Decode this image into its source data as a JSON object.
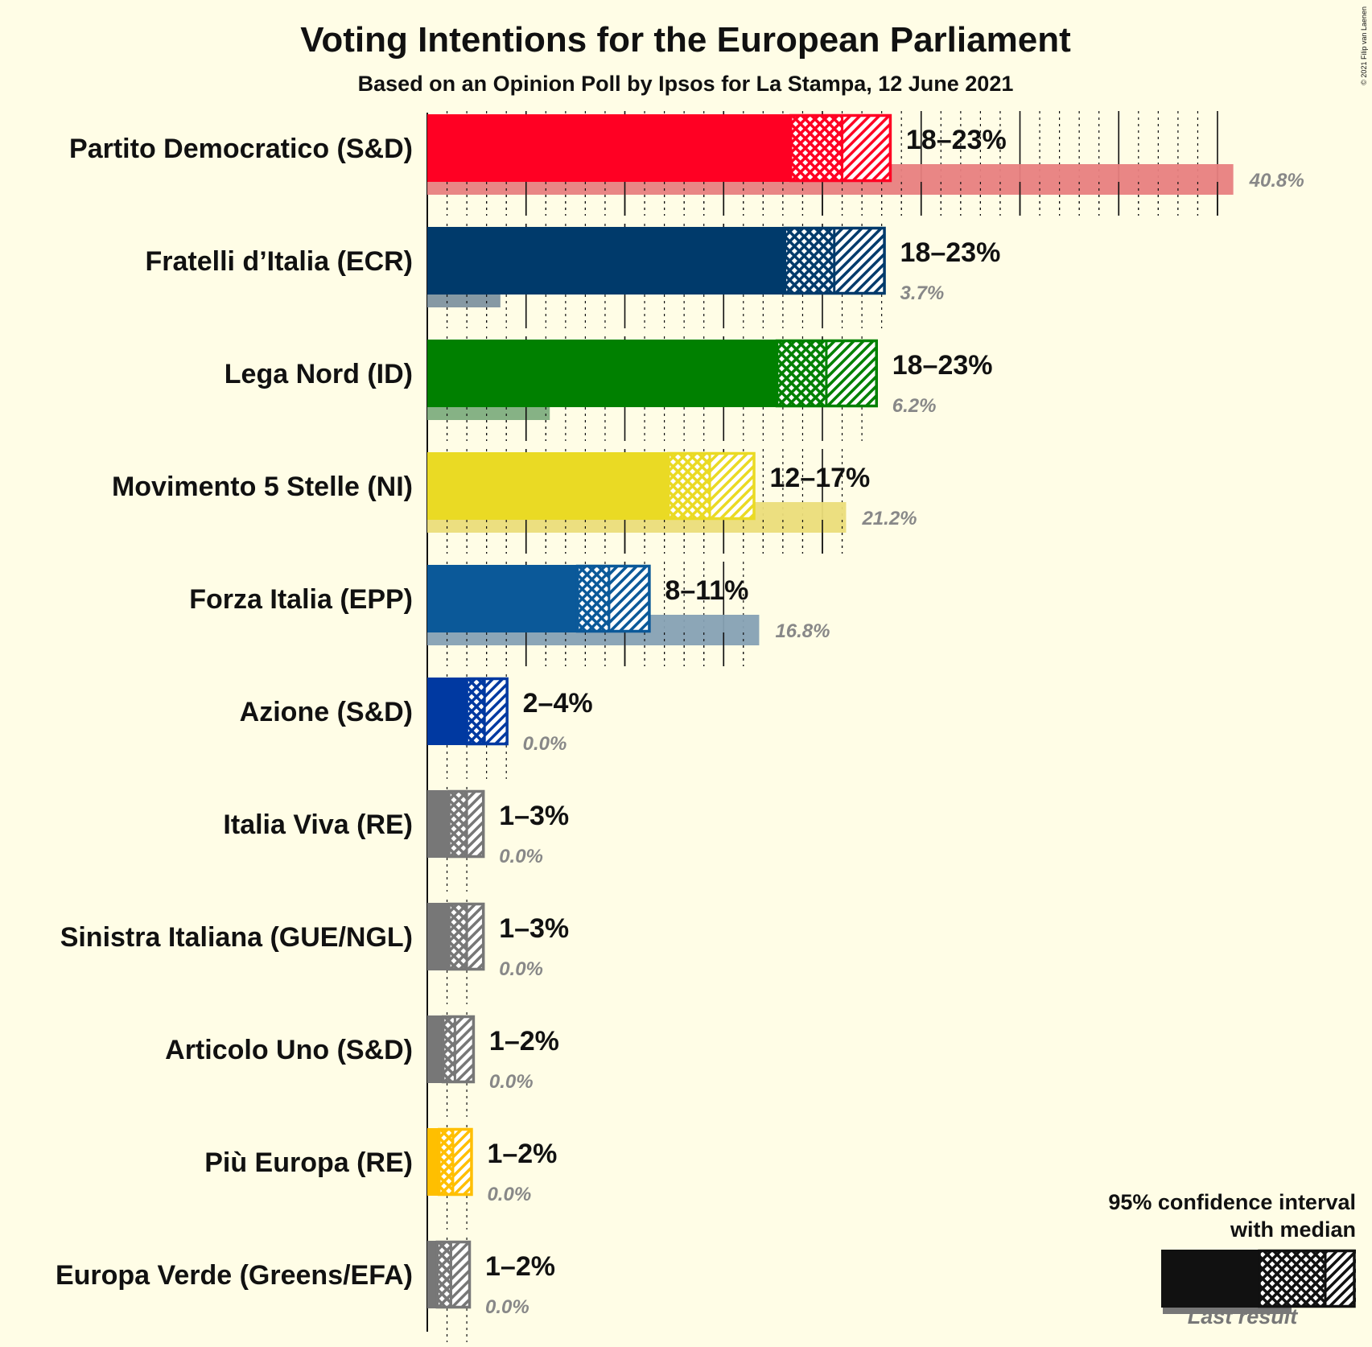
{
  "chart_data": {
    "type": "bar",
    "title": "Voting Intentions for the European Parliament",
    "subtitle": "Based on an Opinion Poll by Ipsos for La Stampa, 12 June 2021",
    "copyright": "© 2021 Filip van Laenen",
    "xlim": [
      0,
      42
    ],
    "series": [
      {
        "party": "Partito Democratico (S&D)",
        "color": "#ff0023",
        "last_color": "#e88080",
        "low": 18.4,
        "q1": 19.8,
        "median": 21.0,
        "q3": 22.3,
        "high": 23.5,
        "range_label": "18–23%",
        "last": 40.8,
        "last_label": "40.8%"
      },
      {
        "party": "Fratelli d’Italia (ECR)",
        "color": "#003a6b",
        "last_color": "#7f93a0",
        "low": 18.1,
        "q1": 19.5,
        "median": 20.6,
        "q3": 21.9,
        "high": 23.2,
        "range_label": "18–23%",
        "last": 3.7,
        "last_label": "3.7%"
      },
      {
        "party": "Lega Nord (ID)",
        "color": "#008000",
        "last_color": "#7fae7f",
        "low": 17.7,
        "q1": 19.1,
        "median": 20.2,
        "q3": 21.5,
        "high": 22.8,
        "range_label": "18–23%",
        "last": 6.2,
        "last_label": "6.2%"
      },
      {
        "party": "Movimento 5 Stelle (NI)",
        "color": "#eada24",
        "last_color": "#ebdd7a",
        "low": 12.2,
        "q1": 13.3,
        "median": 14.3,
        "q3": 15.5,
        "high": 16.6,
        "range_label": "12–17%",
        "last": 21.2,
        "last_label": "21.2%"
      },
      {
        "party": "Forza Italia (EPP)",
        "color": "#0b5999",
        "last_color": "#86a1b4",
        "low": 7.6,
        "q1": 8.4,
        "median": 9.2,
        "q3": 10.2,
        "high": 11.3,
        "range_label": "8–11%",
        "last": 16.8,
        "last_label": "16.8%"
      },
      {
        "party": "Azione (S&D)",
        "color": "#0039a1",
        "last_color": "#7f93c0",
        "low": 2.0,
        "q1": 2.4,
        "median": 2.9,
        "q3": 3.5,
        "high": 4.1,
        "range_label": "2–4%",
        "last": 0.0,
        "last_label": "0.0%"
      },
      {
        "party": "Italia Viva (RE)",
        "color": "#777777",
        "last_color": "#aaaaaa",
        "low": 1.1,
        "q1": 1.4,
        "median": 2.0,
        "q3": 2.5,
        "high": 2.9,
        "range_label": "1–3%",
        "last": 0.0,
        "last_label": "0.0%"
      },
      {
        "party": "Sinistra Italiana (GUE/NGL)",
        "color": "#777777",
        "last_color": "#aaaaaa",
        "low": 1.1,
        "q1": 1.4,
        "median": 2.0,
        "q3": 2.5,
        "high": 2.9,
        "range_label": "1–3%",
        "last": 0.0,
        "last_label": "0.0%"
      },
      {
        "party": "Articolo Uno (S&D)",
        "color": "#777777",
        "last_color": "#aaaaaa",
        "low": 0.8,
        "q1": 1.0,
        "median": 1.4,
        "q3": 2.0,
        "high": 2.4,
        "range_label": "1–2%",
        "last": 0.0,
        "last_label": "0.0%"
      },
      {
        "party": "Più Europa (RE)",
        "color": "#ffbf00",
        "last_color": "#ffd966",
        "low": 0.6,
        "q1": 0.9,
        "median": 1.3,
        "q3": 1.8,
        "high": 2.3,
        "range_label": "1–2%",
        "last": 0.0,
        "last_label": "0.0%"
      },
      {
        "party": "Europa Verde (Greens/EFA)",
        "color": "#777777",
        "last_color": "#aaaaaa",
        "low": 0.5,
        "q1": 0.8,
        "median": 1.2,
        "q3": 1.7,
        "high": 2.2,
        "range_label": "1–2%",
        "last": 0.0,
        "last_label": "0.0%"
      }
    ],
    "legend": {
      "line1": "95% confidence interval",
      "line2": "with median",
      "last_result": "Last result"
    }
  }
}
